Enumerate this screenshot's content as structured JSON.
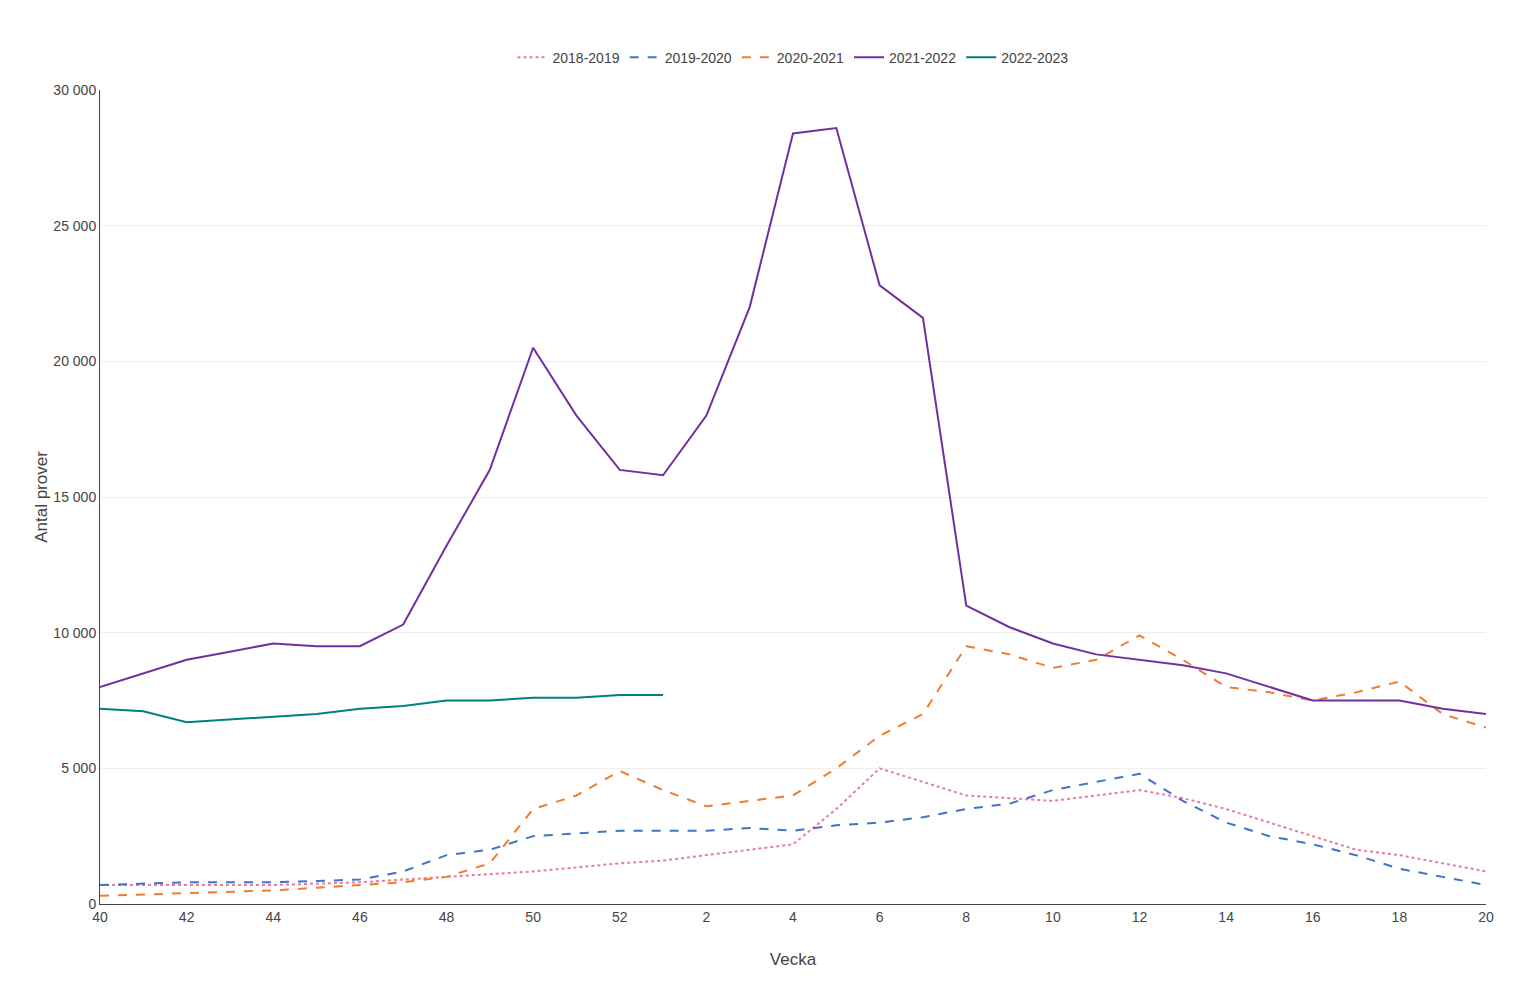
{
  "chart_data": {
    "type": "line",
    "xlabel": "Vecka",
    "ylabel": "Antal prover",
    "categories": [
      "40",
      null,
      "42",
      null,
      "44",
      null,
      "46",
      null,
      "48",
      null,
      "50",
      null,
      "52",
      null,
      "2",
      null,
      "4",
      null,
      "6",
      null,
      "8",
      null,
      "10",
      null,
      "12",
      null,
      "14",
      null,
      "16",
      null,
      "18",
      null,
      "20"
    ],
    "ylim": [
      0,
      30000
    ],
    "yticks": [
      0,
      {
        "value": 5000,
        "label": "5 000"
      },
      {
        "value": 10000,
        "label": "10 000"
      },
      {
        "value": 15000,
        "label": "15 000"
      },
      {
        "value": 20000,
        "label": "20 000"
      },
      {
        "value": 25000,
        "label": "25 000"
      },
      {
        "value": 30000,
        "label": "30 000"
      }
    ],
    "grid": true,
    "legend": "top",
    "series": [
      {
        "name": "2018-2019",
        "color": "#e87ca0",
        "line_style": "dotted",
        "values": [
          700,
          700,
          700,
          700,
          700,
          750,
          800,
          900,
          1000,
          1100,
          1200,
          1350,
          1500,
          1600,
          1800,
          2000,
          2200,
          3500,
          5000,
          4500,
          4000,
          3900,
          3800,
          4000,
          4200,
          3900,
          3500,
          3000,
          2500,
          2000,
          1800,
          1500,
          1200
        ]
      },
      {
        "name": "2019-2020",
        "color": "#4472c4",
        "line_style": "dashed",
        "values": [
          700,
          750,
          800,
          800,
          800,
          850,
          900,
          1200,
          1800,
          2000,
          2500,
          2600,
          2700,
          2700,
          2700,
          2800,
          2700,
          2900,
          3000,
          3200,
          3500,
          3700,
          4200,
          4500,
          4800,
          3800,
          3000,
          2500,
          2200,
          1800,
          1300,
          1000,
          700
        ]
      },
      {
        "name": "2020-2021",
        "color": "#ed7d31",
        "line_style": "dashed",
        "values": [
          300,
          350,
          400,
          450,
          500,
          600,
          700,
          800,
          1000,
          1500,
          3500,
          4000,
          4900,
          4200,
          3600,
          3800,
          4000,
          5000,
          6200,
          7000,
          9500,
          9200,
          8700,
          9000,
          9900,
          9000,
          8000,
          7800,
          7500,
          7800,
          8200,
          7000,
          6500
        ]
      },
      {
        "name": "2021-2022",
        "color": "#7030a0",
        "line_style": "solid",
        "values": [
          8000,
          8500,
          9000,
          9300,
          9600,
          9500,
          9500,
          10300,
          13200,
          16000,
          20500,
          18000,
          16000,
          15800,
          18000,
          22000,
          28400,
          28600,
          22800,
          21600,
          11000,
          10200,
          9600,
          9200,
          9000,
          8800,
          8500,
          8000,
          7500,
          7500,
          7500,
          7200,
          7000
        ]
      },
      {
        "name": "2022-2023",
        "color": "#008080",
        "line_style": "solid",
        "values": [
          7200,
          7100,
          6700,
          6800,
          6900,
          7000,
          7200,
          7300,
          7500,
          7500,
          7600,
          7600,
          7700,
          7700,
          null,
          null,
          null,
          null,
          null,
          null,
          null,
          null,
          null,
          null,
          null,
          null,
          null,
          null,
          null,
          null,
          null,
          null,
          null
        ]
      }
    ]
  }
}
